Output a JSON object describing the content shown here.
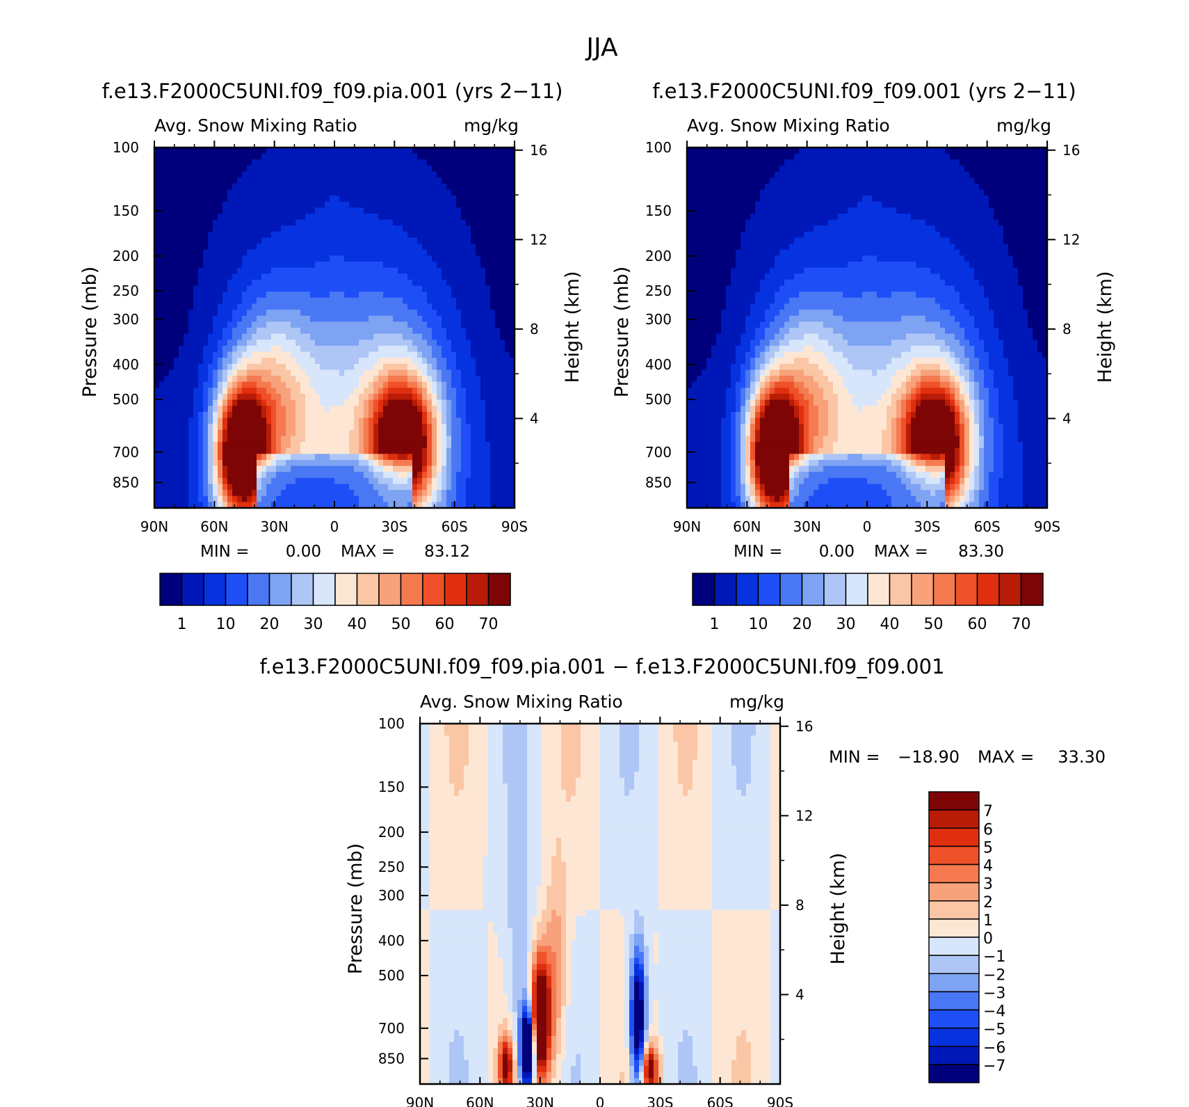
{
  "figure": {
    "title": "JJA"
  },
  "colors": {
    "full_field": [
      "#00007c",
      "#0018b8",
      "#0632e0",
      "#1e4ff6",
      "#4a78f4",
      "#7ea3f3",
      "#aec6f6",
      "#d8e6fb",
      "#fde7d4",
      "#fbc6a5",
      "#f8a27c",
      "#f57a50",
      "#ef512a",
      "#e02f0e",
      "#b91c06",
      "#7e0505"
    ],
    "difference": [
      "#00007c",
      "#0018b8",
      "#0632e0",
      "#1e4ff6",
      "#4a78f4",
      "#7ea3f3",
      "#aec6f6",
      "#d8e6fb",
      "#fde7d4",
      "#fbc6a5",
      "#f8a27c",
      "#f57a50",
      "#ef512a",
      "#e02f0e",
      "#b91c06",
      "#7e0505"
    ]
  },
  "chart_data": [
    {
      "type": "heatmap",
      "id": "panel-left",
      "title": "f.e13.F2000C5UNI.f09_f09.pia.001 (yrs 2-11)",
      "variable": "Avg. Snow Mixing Ratio",
      "units": "mg/kg",
      "ylabel": "Pressure (mb)",
      "ylabel_right": "Height (km)",
      "x_ticks": [
        "90N",
        "60N",
        "30N",
        "0",
        "30S",
        "60S",
        "90S"
      ],
      "y_ticks": [
        "100",
        "150",
        "200",
        "250",
        "300",
        "400",
        "500",
        "700",
        "850"
      ],
      "y_tick_values": [
        100,
        150,
        200,
        250,
        300,
        400,
        500,
        700,
        850
      ],
      "y_right_ticks": [
        "16",
        "12",
        "8",
        "4"
      ],
      "y_right_tick_values": [
        16,
        12,
        8,
        4
      ],
      "ylim": [
        100,
        1000
      ],
      "xlim": [
        90,
        -90
      ],
      "stats": {
        "min_label": "MIN =",
        "min": "0.00",
        "max_label": "MAX =",
        "max": "83.12"
      },
      "max_value": 83.12,
      "colorbar": {
        "orientation": "horizontal",
        "levels": [
          1,
          5,
          10,
          15,
          20,
          25,
          30,
          35,
          40,
          45,
          50,
          55,
          60,
          65,
          70
        ],
        "labels": [
          "1",
          "10",
          "20",
          "30",
          "40",
          "50",
          "60",
          "70"
        ]
      }
    },
    {
      "type": "heatmap",
      "id": "panel-right",
      "title": "f.e13.F2000C5UNI.f09_f09.001 (yrs 2-11)",
      "variable": "Avg. Snow Mixing Ratio",
      "units": "mg/kg",
      "ylabel": "Pressure (mb)",
      "ylabel_right": "Height (km)",
      "x_ticks": [
        "90N",
        "60N",
        "30N",
        "0",
        "30S",
        "60S",
        "90S"
      ],
      "y_ticks": [
        "100",
        "150",
        "200",
        "250",
        "300",
        "400",
        "500",
        "700",
        "850"
      ],
      "y_tick_values": [
        100,
        150,
        200,
        250,
        300,
        400,
        500,
        700,
        850
      ],
      "y_right_ticks": [
        "16",
        "12",
        "8",
        "4"
      ],
      "y_right_tick_values": [
        16,
        12,
        8,
        4
      ],
      "ylim": [
        100,
        1000
      ],
      "xlim": [
        90,
        -90
      ],
      "stats": {
        "min_label": "MIN =",
        "min": "0.00",
        "max_label": "MAX =",
        "max": "83.30"
      },
      "max_value": 83.3,
      "colorbar": {
        "orientation": "horizontal",
        "levels": [
          1,
          5,
          10,
          15,
          20,
          25,
          30,
          35,
          40,
          45,
          50,
          55,
          60,
          65,
          70
        ],
        "labels": [
          "1",
          "10",
          "20",
          "30",
          "40",
          "50",
          "60",
          "70"
        ]
      }
    },
    {
      "type": "heatmap",
      "id": "panel-diff",
      "title": "f.e13.F2000C5UNI.f09_f09.pia.001 - f.e13.F2000C5UNI.f09_f09.001",
      "variable": "Avg. Snow Mixing Ratio",
      "units": "mg/kg",
      "ylabel": "Pressure (mb)",
      "ylabel_right": "Height (km)",
      "x_ticks": [
        "90N",
        "60N",
        "30N",
        "0",
        "30S",
        "60S",
        "90S"
      ],
      "y_ticks": [
        "100",
        "150",
        "200",
        "250",
        "300",
        "400",
        "500",
        "700",
        "850"
      ],
      "y_tick_values": [
        100,
        150,
        200,
        250,
        300,
        400,
        500,
        700,
        850
      ],
      "y_right_ticks": [
        "16",
        "12",
        "8",
        "4"
      ],
      "y_right_tick_values": [
        16,
        12,
        8,
        4
      ],
      "ylim": [
        100,
        1000
      ],
      "xlim": [
        90,
        -90
      ],
      "stats": {
        "min_label": "MIN =",
        "min": "-18.90",
        "max_label": "MAX =",
        "max": "33.30"
      },
      "colorbar": {
        "orientation": "vertical",
        "levels": [
          -7,
          -6,
          -5,
          -4,
          -3,
          -2,
          -1,
          0,
          1,
          2,
          3,
          4,
          5,
          6,
          7
        ],
        "labels": [
          "7",
          "6",
          "5",
          "4",
          "3",
          "2",
          "1",
          "0",
          "-1",
          "-2",
          "-3",
          "-4",
          "-5",
          "-6",
          "-7"
        ]
      }
    }
  ]
}
